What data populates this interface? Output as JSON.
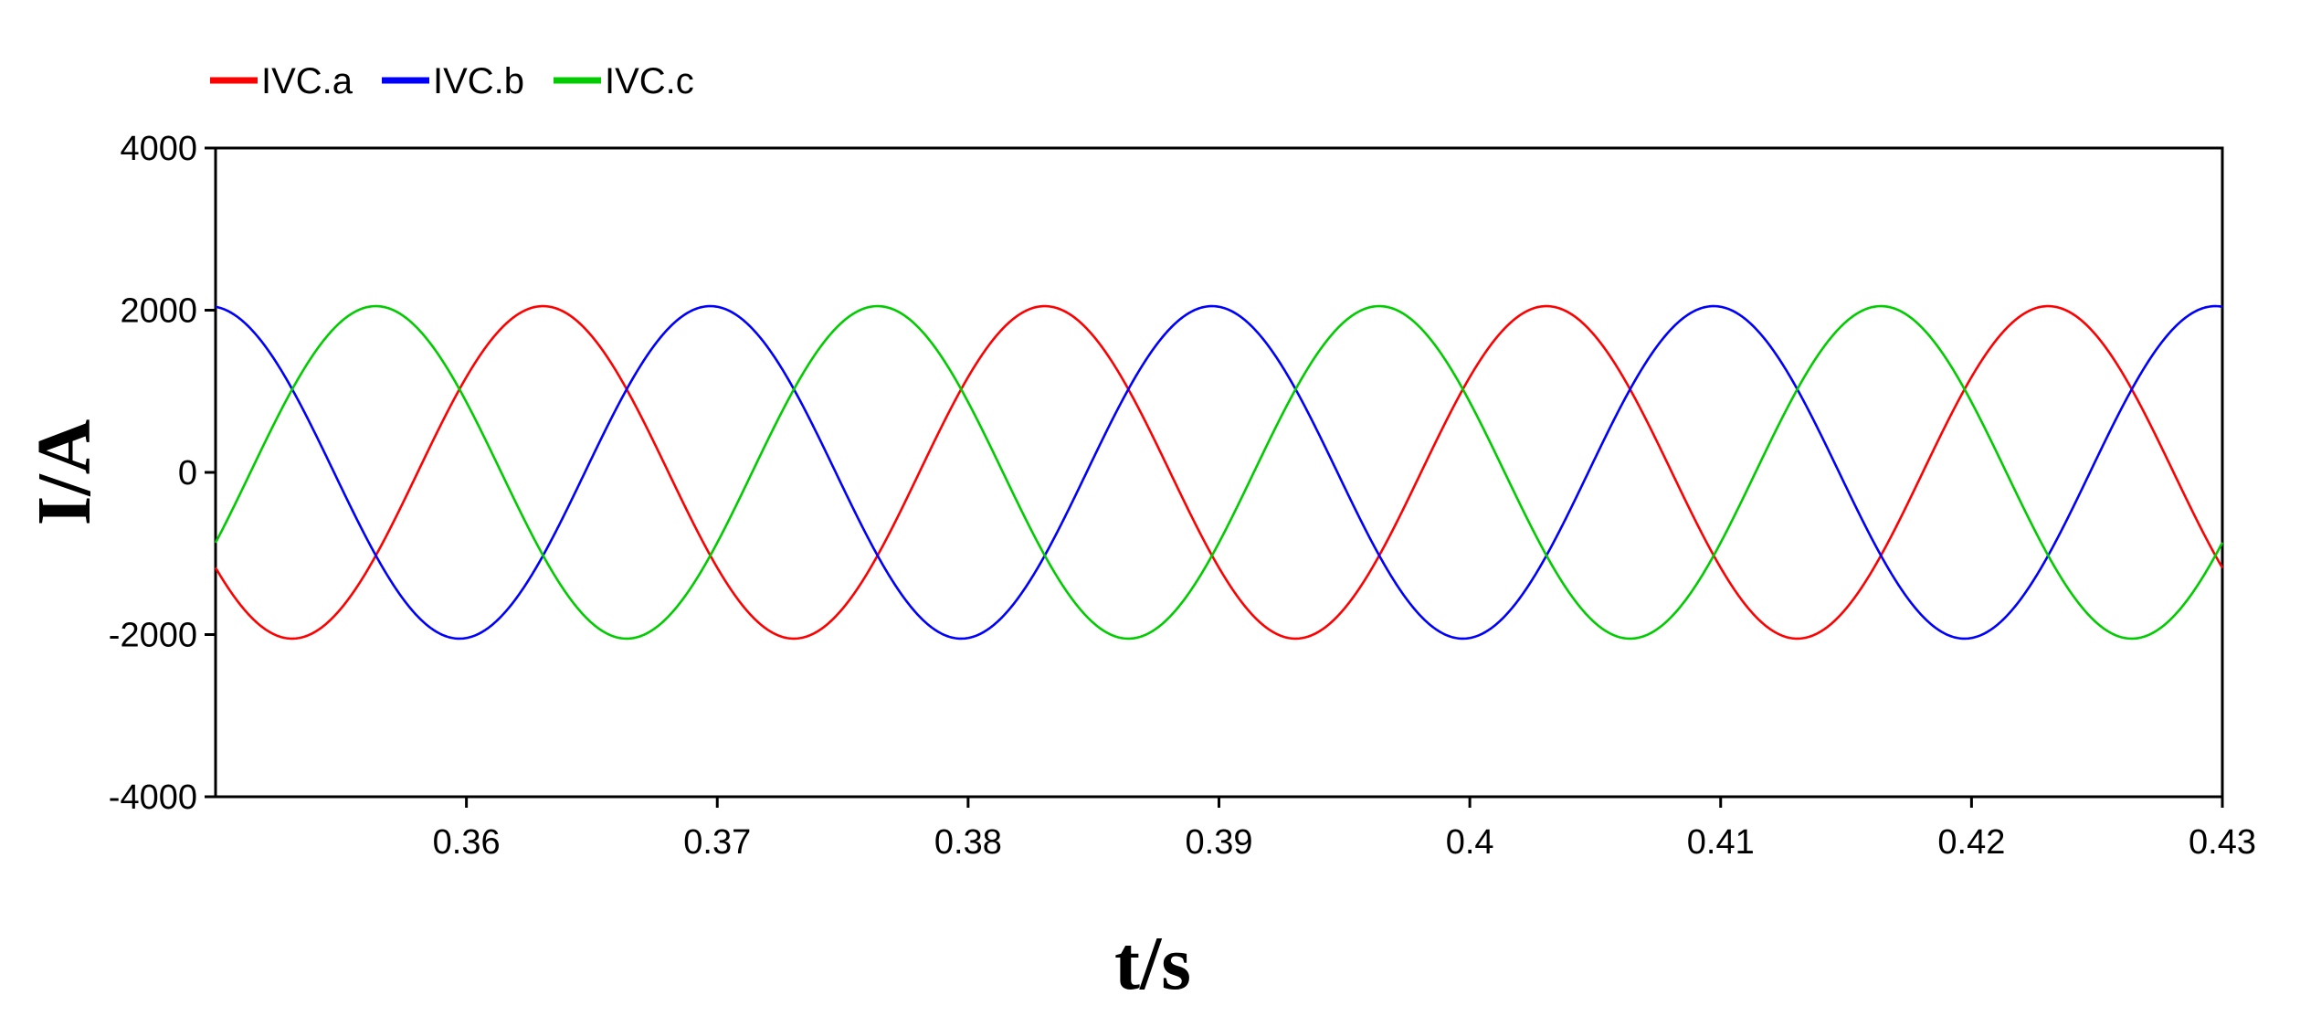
{
  "chart_data": {
    "type": "line",
    "title": "",
    "xlabel": "t/s",
    "ylabel": "I/A",
    "xlim": [
      0.35,
      0.43
    ],
    "ylim": [
      -4000,
      4000
    ],
    "x_ticks": [
      0.36,
      0.37,
      0.38,
      0.39,
      0.4,
      0.41,
      0.42,
      0.43
    ],
    "x_tick_labels": [
      "0.36",
      "0.37",
      "0.38",
      "0.39",
      "0.4",
      "0.41",
      "0.42",
      "0.43"
    ],
    "y_ticks": [
      -4000,
      -2000,
      0,
      2000,
      4000
    ],
    "y_tick_labels": [
      "-4000",
      "-2000",
      "0",
      "2000",
      "4000"
    ],
    "grid": false,
    "legend_position": "top-left",
    "series": [
      {
        "name": "IVC.a",
        "color": "#ff0000",
        "amplitude": 2050,
        "frequency_hz": 50,
        "phase_deg": 35
      },
      {
        "name": "IVC.b",
        "color": "#0000ff",
        "amplitude": 2050,
        "frequency_hz": 50,
        "phase_deg": -85
      },
      {
        "name": "IVC.c",
        "color": "#00cc00",
        "amplitude": 2050,
        "frequency_hz": 50,
        "phase_deg": 155
      }
    ]
  }
}
